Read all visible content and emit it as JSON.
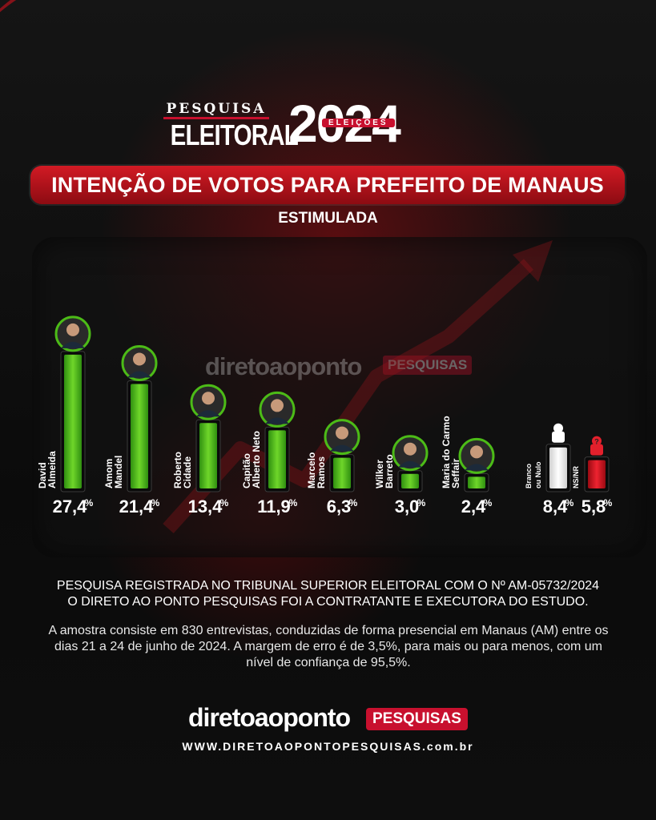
{
  "header": {
    "pesquisa": "PESQUISA",
    "eleitoral": "ELEITORAL",
    "year": "2024",
    "eleicoes": "ELEIÇÕES"
  },
  "title": "INTENÇÃO DE VOTOS PARA PREFEITO DE MANAUS",
  "subtitle": "ESTIMULADA",
  "watermark": {
    "text": "diretoaoponto",
    "badge": "PESQUISAS"
  },
  "chart_data": {
    "type": "bar",
    "title": "INTENÇÃO DE VOTOS PARA PREFEITO DE MANAUS",
    "subtitle": "ESTIMULADA",
    "categories": [
      "David Almeida",
      "Amom Mandel",
      "Roberto Cidade",
      "Capitão Alberto Neto",
      "Marcelo Ramos",
      "Wilker Barreto",
      "Maria do Carmo Seffair",
      "Branco ou Nulo",
      "NS/NR"
    ],
    "labels": [
      [
        "David",
        "Almeida"
      ],
      [
        "Amom",
        "Mandel"
      ],
      [
        "Roberto",
        "Cidade"
      ],
      [
        "Capitão",
        "Alberto Neto"
      ],
      [
        "Marcelo",
        "Ramos"
      ],
      [
        "Wilker",
        "Barreto"
      ],
      [
        "Maria do Carmo",
        "Seffair"
      ],
      [
        "Branco",
        "ou Nulo"
      ],
      [
        "NS/NR"
      ]
    ],
    "values": [
      27.4,
      21.4,
      13.4,
      11.9,
      6.3,
      3.0,
      2.4,
      8.4,
      5.8
    ],
    "value_labels": [
      "27,4",
      "21,4",
      "13,4",
      "11,9",
      "6,3",
      "3,0",
      "2,4",
      "8,4",
      "5,8"
    ],
    "unit": "%",
    "colors": {
      "candidate": "#4cbb17",
      "blank": "#ffffff",
      "nsnr": "#d8101c"
    },
    "grid": false
  },
  "footer": {
    "line1": "PESQUISA REGISTRADA NO TRIBUNAL SUPERIOR ELEITORAL COM O Nº AM-05732/2024",
    "line2": "O DIRETO AO PONTO PESQUISAS FOI A CONTRATANTE E EXECUTORA DO ESTUDO.",
    "note": "A amostra consiste em 830 entrevistas, conduzidas de forma presencial em Manaus (AM) entre os dias 21 a 24 de junho de 2024. A margem de erro é de 3,5%, para mais ou para menos, com um nível de confiança de 95,5%."
  },
  "brand": {
    "text": "diretoaoponto",
    "badge": "PESQUISAS",
    "url": "WWW.DIRETOAOPONTOPESQUISAS.com.br"
  },
  "colors": {
    "accent": "#c8102e",
    "bar_green": "#4cbb17"
  }
}
